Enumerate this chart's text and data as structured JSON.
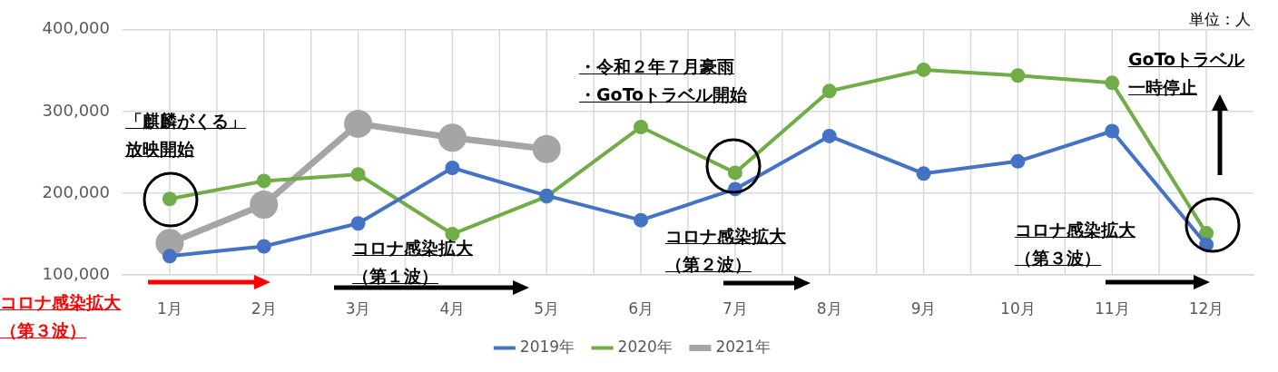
{
  "chart_data": {
    "type": "line",
    "categories": [
      "1月",
      "2月",
      "3月",
      "4月",
      "5月",
      "6月",
      "7月",
      "8月",
      "9月",
      "10月",
      "11月",
      "12月"
    ],
    "series": [
      {
        "name": "2019年",
        "color": "#4472c4",
        "values": [
          123000,
          135000,
          163000,
          231000,
          197000,
          167000,
          205000,
          270000,
          224000,
          239000,
          276000,
          137000
        ]
      },
      {
        "name": "2020年",
        "color": "#70ad47",
        "values": [
          193000,
          215000,
          223000,
          150000,
          196000,
          281000,
          225000,
          325000,
          351000,
          344000,
          335000,
          151000
        ]
      },
      {
        "name": "2021年",
        "color": "#a5a5a5",
        "values": [
          139000,
          186000,
          285000,
          268000,
          254000,
          null,
          null,
          null,
          null,
          null,
          null,
          null
        ]
      }
    ],
    "ylim": [
      100000,
      400000
    ],
    "yticks": [
      {
        "value": 100000,
        "label": "100,000"
      },
      {
        "value": 200000,
        "label": "200,000"
      },
      {
        "value": 300000,
        "label": "300,000"
      },
      {
        "value": 400000,
        "label": "400,000"
      }
    ],
    "grid": true,
    "legend": "bottom",
    "marker": "circle",
    "line_style": "solid",
    "annotations": [
      "単位：人",
      "「麒麟がくる」",
      "放映開始",
      "コロナ感染拡大",
      "（第１波）",
      "・令和２年７月豪雨",
      "・GoToトラベル開始",
      "コロナ感染拡大",
      "（第２波）",
      "GoToトラベル",
      "一時停止",
      "コロナ感染拡大",
      "（第３波）",
      "コロナ感染拡大",
      "（第３波）"
    ]
  }
}
